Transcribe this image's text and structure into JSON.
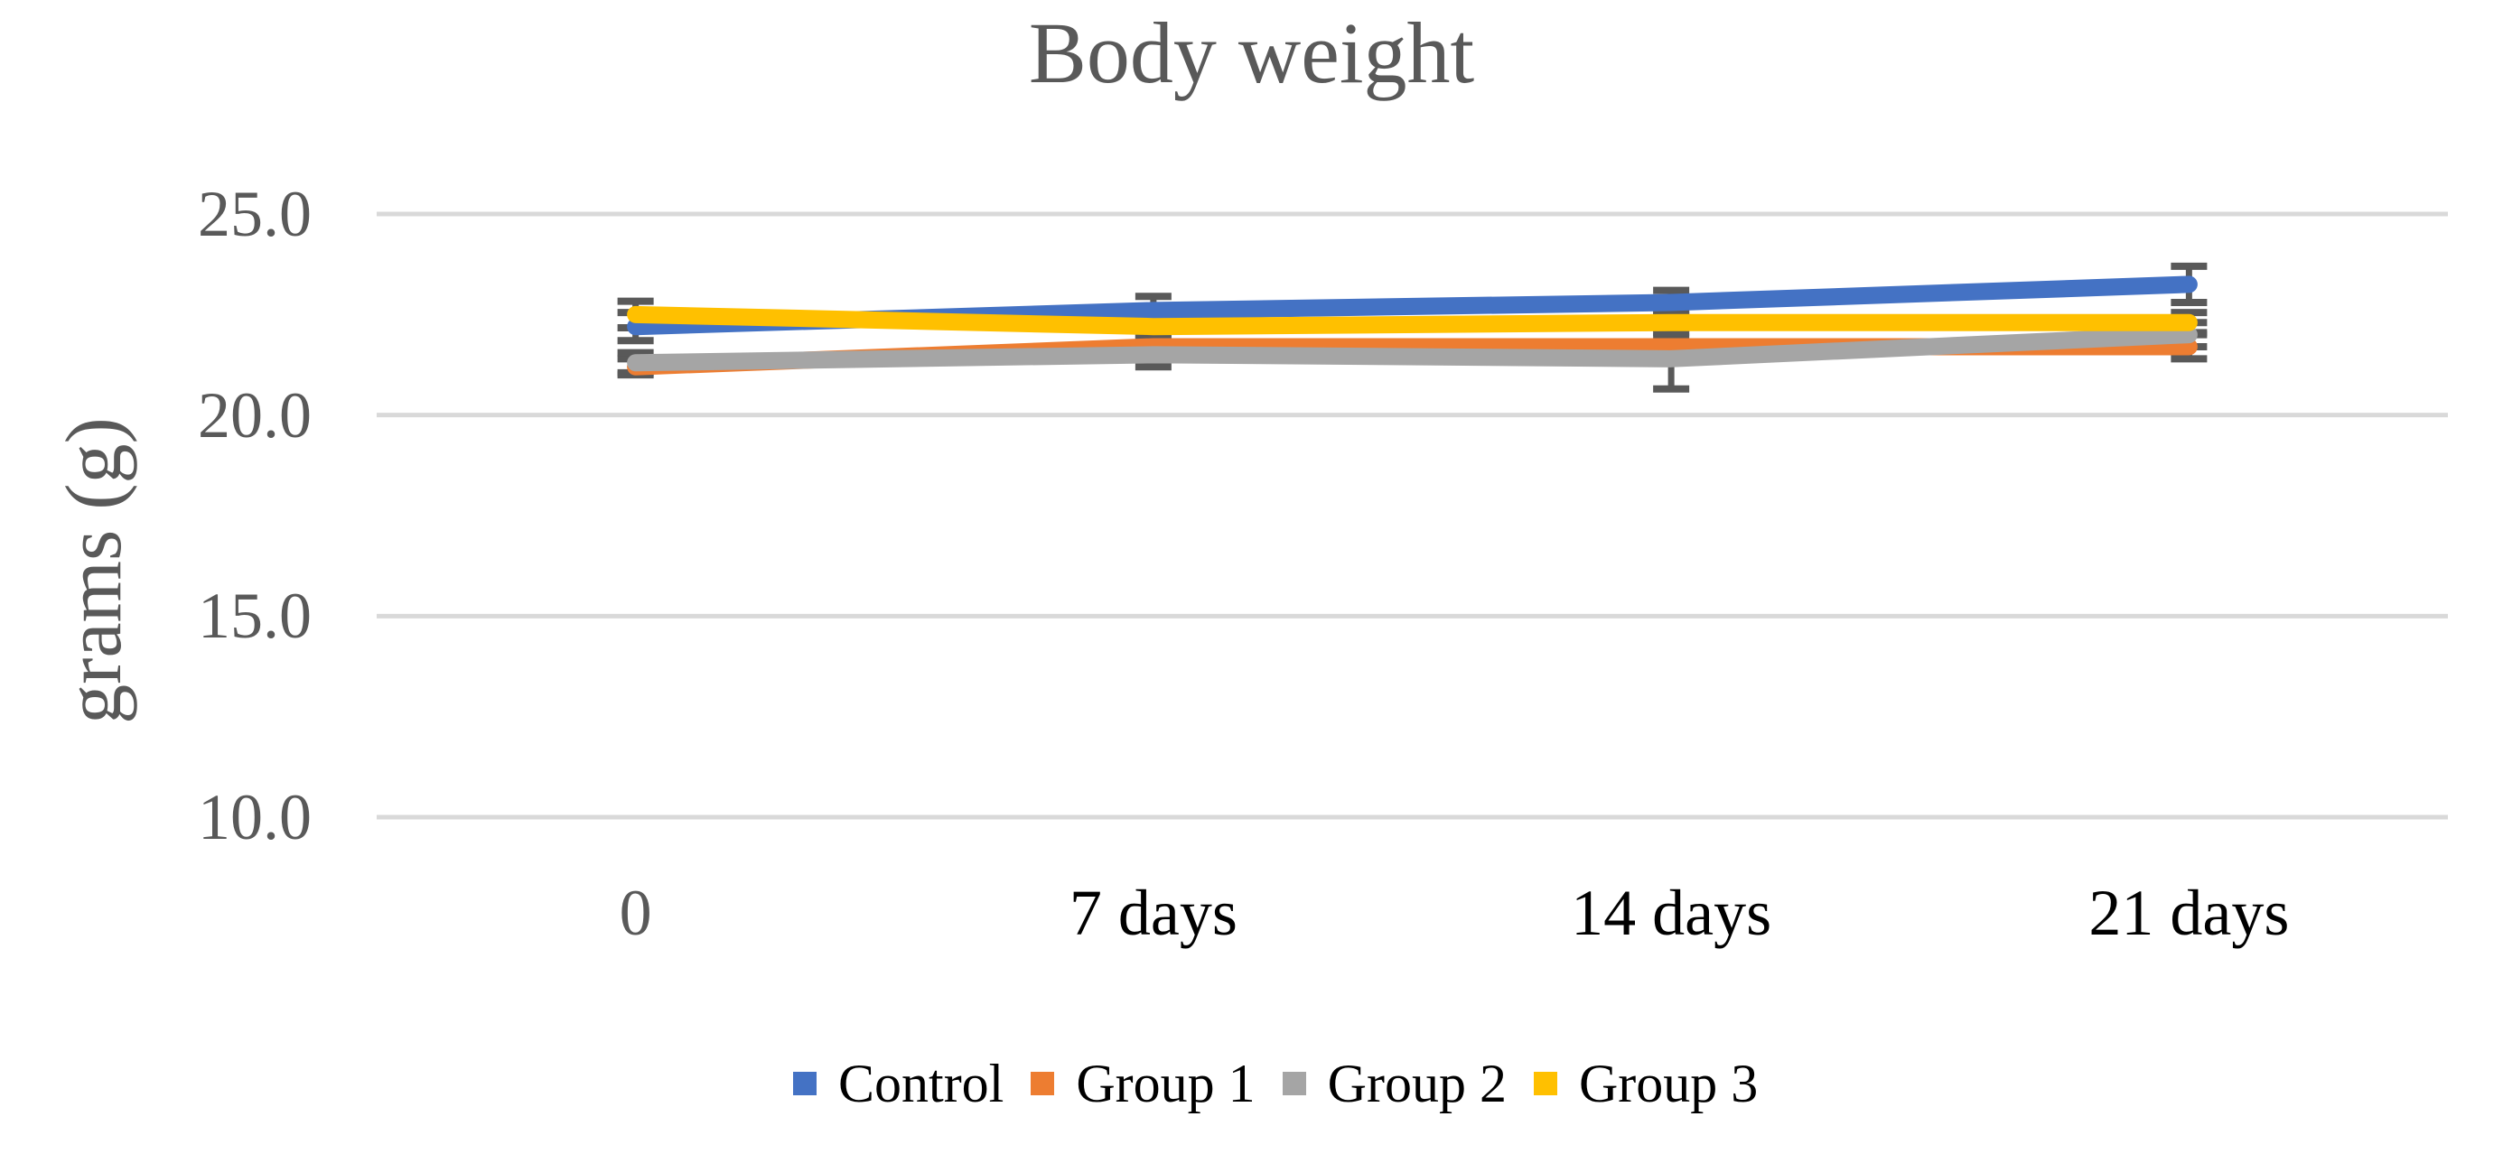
{
  "chart_data": {
    "type": "line",
    "title": "Body weight",
    "ylabel": "grams (g)",
    "categories": [
      "0",
      "7 days",
      "14 days",
      "21 days"
    ],
    "x_tick_colors": [
      "#595959",
      "#000000",
      "#000000",
      "#000000"
    ],
    "y_ticks": [
      {
        "label": "25.0",
        "value": 25.0
      },
      {
        "label": "20.0",
        "value": 20.0
      },
      {
        "label": "15.0",
        "value": 15.0
      },
      {
        "label": "10.0",
        "value": 10.0
      }
    ],
    "ylim": [
      10,
      25
    ],
    "grid": true,
    "legend_position": "bottom",
    "colors": {
      "gridline": "#D9D9D9",
      "error_bar": "#595959",
      "axis_text": "#595959",
      "category_text": "#000000",
      "title_text": "#595959",
      "legend_text": "#000000"
    },
    "series": [
      {
        "name": "Control",
        "color": "#4472C4",
        "values": [
          22.2,
          22.6,
          22.8,
          23.25
        ],
        "errors": [
          0.35,
          0.35,
          0.3,
          0.45
        ]
      },
      {
        "name": "Group 1",
        "color": "#ED7D31",
        "values": [
          21.2,
          21.7,
          21.7,
          21.7
        ],
        "errors": [
          0.2,
          0.25,
          0.25,
          0.3
        ]
      },
      {
        "name": "Group 2",
        "color": "#A5A5A5",
        "values": [
          21.3,
          21.5,
          21.4,
          22.0
        ],
        "errors": [
          0.25,
          0.3,
          0.75,
          0.3
        ]
      },
      {
        "name": "Group 3",
        "color": "#FFC000",
        "values": [
          22.5,
          22.2,
          22.3,
          22.3
        ],
        "errors": [
          0.33,
          0.25,
          0.25,
          0.25
        ]
      }
    ]
  }
}
